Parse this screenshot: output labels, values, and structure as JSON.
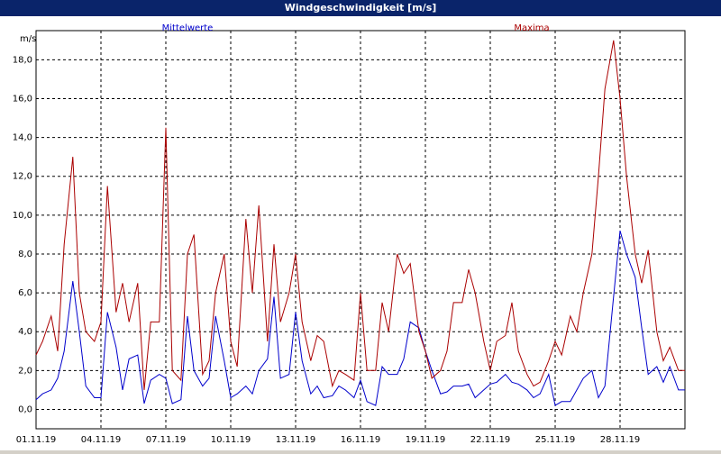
{
  "window": {
    "title": "Windgeschwindigkeit [m/s]"
  },
  "chart_data": {
    "type": "line",
    "title": "Windgeschwindigkeit [m/s]",
    "ylabel": "m/s",
    "xlabel": "",
    "grid": true,
    "ylim": [
      -1,
      19.5
    ],
    "xlim": [
      1,
      31
    ],
    "yticks": [
      "0,0",
      "2,0",
      "4,0",
      "6,0",
      "8,0",
      "10,0",
      "12,0",
      "14,0",
      "16,0",
      "18,0"
    ],
    "xticks": [
      "01.11.19",
      "04.11.19",
      "07.11.19",
      "10.11.19",
      "13.11.19",
      "16.11.19",
      "19.11.19",
      "22.11.19",
      "25.11.19",
      "28.11.19"
    ],
    "legend_placement": "top",
    "series": [
      {
        "name": "Mittelwerte",
        "color": "#0000cc",
        "x": [
          1.0,
          1.3,
          1.7,
          2.0,
          2.3,
          2.7,
          3.0,
          3.3,
          3.7,
          4.0,
          4.3,
          4.7,
          5.0,
          5.3,
          5.7,
          6.0,
          6.3,
          6.7,
          7.0,
          7.3,
          7.7,
          8.0,
          8.3,
          8.7,
          9.0,
          9.3,
          9.7,
          10.0,
          10.3,
          10.7,
          11.0,
          11.3,
          11.7,
          12.0,
          12.3,
          12.7,
          13.0,
          13.3,
          13.7,
          14.0,
          14.3,
          14.7,
          15.0,
          15.3,
          15.7,
          16.0,
          16.3,
          16.7,
          17.0,
          17.3,
          17.7,
          18.0,
          18.3,
          18.7,
          19.0,
          19.3,
          19.7,
          20.0,
          20.3,
          20.7,
          21.0,
          21.3,
          21.7,
          22.0,
          22.3,
          22.7,
          23.0,
          23.3,
          23.7,
          24.0,
          24.3,
          24.7,
          25.0,
          25.3,
          25.7,
          26.0,
          26.3,
          26.7,
          27.0,
          27.3,
          27.7,
          28.0,
          28.3,
          28.7,
          29.0,
          29.3,
          29.7,
          30.0,
          30.3,
          30.7,
          31.0
        ],
        "values": [
          0.5,
          0.8,
          1.0,
          1.6,
          3.0,
          6.6,
          4.0,
          1.2,
          0.6,
          0.6,
          5.0,
          3.2,
          1.0,
          2.6,
          2.8,
          0.3,
          1.5,
          1.8,
          1.6,
          0.3,
          0.5,
          4.8,
          2.0,
          1.2,
          1.6,
          4.8,
          2.5,
          0.6,
          0.8,
          1.2,
          0.8,
          2.0,
          2.6,
          5.8,
          1.6,
          1.8,
          5.0,
          2.5,
          0.8,
          1.2,
          0.6,
          0.7,
          1.2,
          1.0,
          0.6,
          1.5,
          0.4,
          0.2,
          2.2,
          1.8,
          1.8,
          2.6,
          4.5,
          4.2,
          3.0,
          2.0,
          0.8,
          0.9,
          1.2,
          1.2,
          1.3,
          0.6,
          1.0,
          1.3,
          1.4,
          1.8,
          1.4,
          1.3,
          1.0,
          0.6,
          0.8,
          1.8,
          0.2,
          0.4,
          0.4,
          1.0,
          1.6,
          2.0,
          0.6,
          1.2,
          5.8,
          9.2,
          8.0,
          6.8,
          4.2,
          1.8,
          2.2,
          1.4,
          2.2,
          1.0,
          1.0
        ]
      },
      {
        "name": "Maxima",
        "color": "#aa0000",
        "x": [
          1.0,
          1.3,
          1.7,
          2.0,
          2.3,
          2.7,
          3.0,
          3.3,
          3.7,
          4.0,
          4.3,
          4.7,
          5.0,
          5.3,
          5.7,
          6.0,
          6.3,
          6.7,
          7.0,
          7.3,
          7.7,
          8.0,
          8.3,
          8.7,
          9.0,
          9.3,
          9.7,
          10.0,
          10.3,
          10.7,
          11.0,
          11.3,
          11.7,
          12.0,
          12.3,
          12.7,
          13.0,
          13.3,
          13.7,
          14.0,
          14.3,
          14.7,
          15.0,
          15.3,
          15.7,
          16.0,
          16.3,
          16.7,
          17.0,
          17.3,
          17.7,
          18.0,
          18.3,
          18.7,
          19.0,
          19.3,
          19.7,
          20.0,
          20.3,
          20.7,
          21.0,
          21.3,
          21.7,
          22.0,
          22.3,
          22.7,
          23.0,
          23.3,
          23.7,
          24.0,
          24.3,
          24.7,
          25.0,
          25.3,
          25.7,
          26.0,
          26.3,
          26.7,
          27.0,
          27.3,
          27.7,
          28.0,
          28.3,
          28.7,
          29.0,
          29.3,
          29.7,
          30.0,
          30.3,
          30.7,
          31.0
        ],
        "values": [
          2.8,
          3.5,
          4.8,
          3.0,
          8.5,
          13.0,
          6.0,
          4.0,
          3.5,
          4.5,
          11.5,
          5.0,
          6.5,
          4.5,
          6.5,
          1.0,
          4.5,
          4.5,
          14.5,
          2.0,
          1.5,
          8.0,
          9.0,
          1.8,
          2.5,
          6.0,
          8.0,
          3.5,
          2.2,
          9.8,
          6.0,
          10.5,
          3.5,
          8.5,
          4.5,
          6.0,
          8.0,
          4.5,
          2.5,
          3.8,
          3.5,
          1.2,
          2.0,
          1.8,
          1.5,
          6.0,
          2.0,
          2.0,
          5.5,
          4.0,
          8.0,
          7.0,
          7.5,
          4.0,
          3.0,
          1.6,
          2.0,
          3.0,
          5.5,
          5.5,
          7.2,
          6.0,
          3.5,
          2.0,
          3.5,
          3.8,
          5.5,
          3.0,
          1.8,
          1.2,
          1.4,
          2.5,
          3.5,
          2.8,
          4.8,
          4.0,
          6.0,
          8.0,
          12.0,
          16.5,
          19.0,
          16.0,
          12.0,
          8.0,
          6.5,
          8.2,
          4.0,
          2.5,
          3.2,
          2.0,
          2.0
        ]
      }
    ]
  }
}
